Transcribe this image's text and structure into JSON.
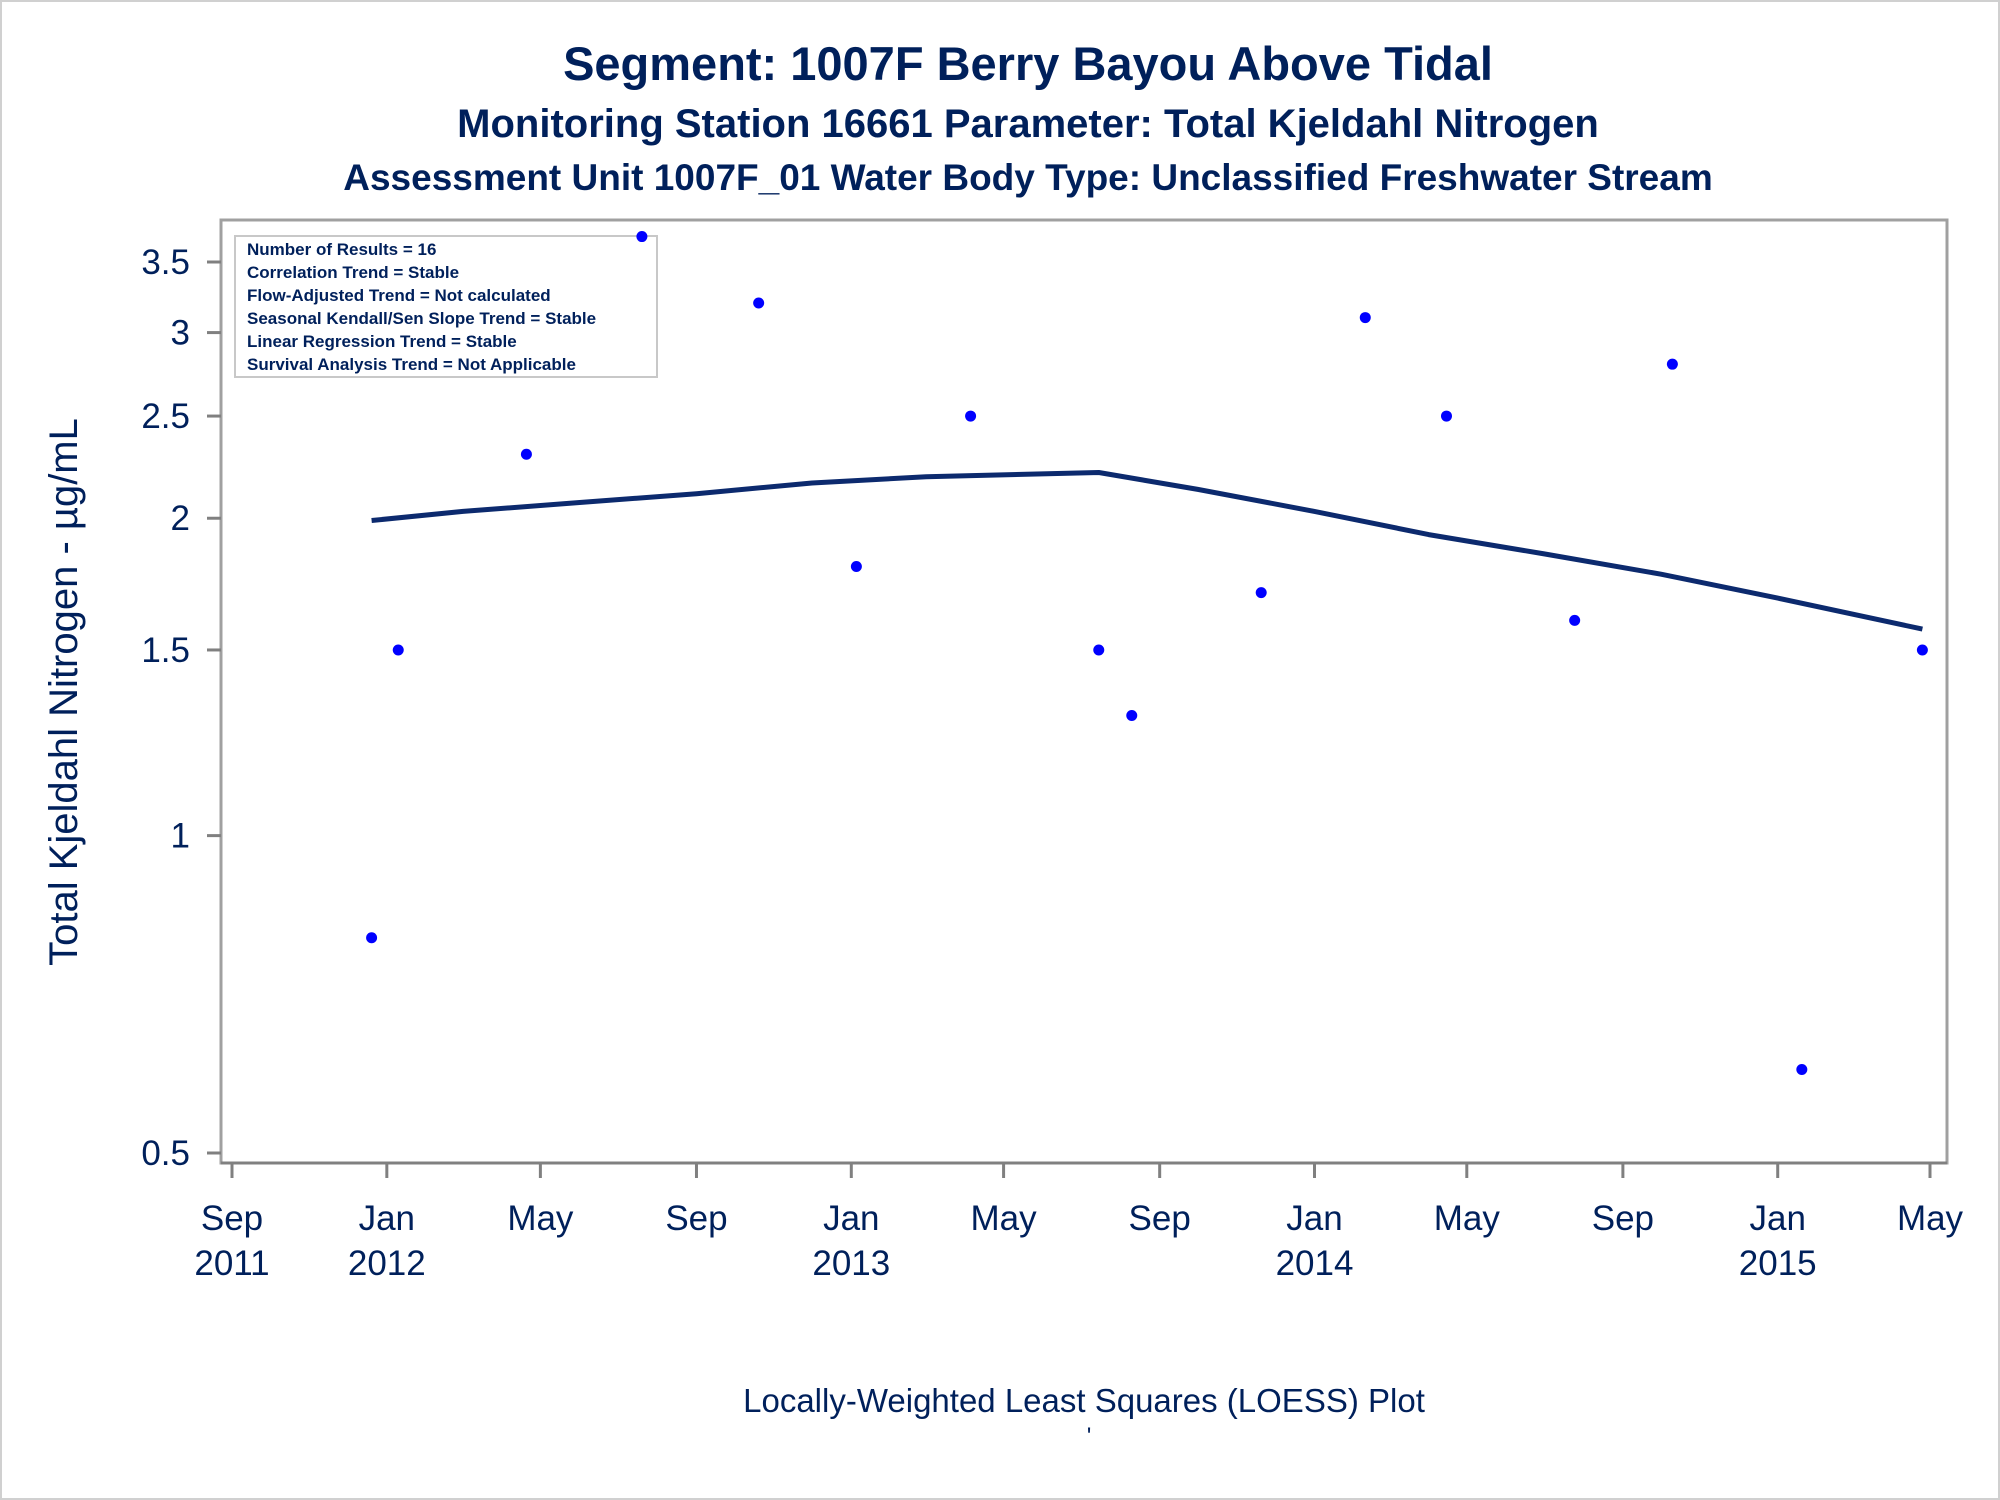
{
  "titles": {
    "line1": "Segment: 1007F  Berry Bayou Above Tidal",
    "line2": "Monitoring Station 16661 Parameter: Total Kjeldahl Nitrogen",
    "line3": "Assessment Unit 1007F_01   Water Body Type: Unclassified Freshwater Stream"
  },
  "footnote": "Locally-Weighted Least Squares (LOESS) Plot",
  "footnote_mark": "'",
  "stats_box": [
    "Number of Results = 16",
    "Correlation Trend = Stable",
    "Flow-Adjusted Trend = Not calculated",
    "Seasonal Kendall/Sen Slope Trend = Stable",
    "Linear Regression Trend = Stable",
    "Survival Analysis Trend = Not Applicable"
  ],
  "colors": {
    "text": "#00205b",
    "points": "#0000ff",
    "loess_line": "#0c2a6e",
    "axis": "#808080"
  },
  "chart_data": {
    "type": "scatter",
    "ylabel": "Total Kjeldahl Nitrogen -  µg/mL",
    "y_scale": "log",
    "ylim": [
      0.5,
      3.7
    ],
    "y_ticks": [
      0.5,
      1,
      1.5,
      2,
      2.5,
      3,
      3.5
    ],
    "xlim": [
      "2011-09-01",
      "2015-05-01"
    ],
    "x_ticks": [
      {
        "date": "2011-09-01",
        "month": "Sep",
        "year": "2011"
      },
      {
        "date": "2012-01-01",
        "month": "Jan",
        "year": "2012"
      },
      {
        "date": "2012-05-01",
        "month": "May",
        "year": ""
      },
      {
        "date": "2012-09-01",
        "month": "Sep",
        "year": ""
      },
      {
        "date": "2013-01-01",
        "month": "Jan",
        "year": "2013"
      },
      {
        "date": "2013-05-01",
        "month": "May",
        "year": ""
      },
      {
        "date": "2013-09-01",
        "month": "Sep",
        "year": ""
      },
      {
        "date": "2014-01-01",
        "month": "Jan",
        "year": "2014"
      },
      {
        "date": "2014-05-01",
        "month": "May",
        "year": ""
      },
      {
        "date": "2014-09-01",
        "month": "Sep",
        "year": ""
      },
      {
        "date": "2015-01-01",
        "month": "Jan",
        "year": "2015"
      },
      {
        "date": "2015-05-01",
        "month": "May",
        "year": ""
      }
    ],
    "grid": false,
    "series": [
      {
        "kind": "points",
        "points": [
          {
            "x": "2011-12-20",
            "y": 0.8
          },
          {
            "x": "2012-01-10",
            "y": 1.5
          },
          {
            "x": "2012-04-20",
            "y": 2.3
          },
          {
            "x": "2012-07-20",
            "y": 3.7
          },
          {
            "x": "2012-10-20",
            "y": 3.2
          },
          {
            "x": "2013-01-05",
            "y": 1.8
          },
          {
            "x": "2013-04-05",
            "y": 2.5
          },
          {
            "x": "2013-07-15",
            "y": 1.5
          },
          {
            "x": "2013-08-10",
            "y": 1.3
          },
          {
            "x": "2013-11-20",
            "y": 1.7
          },
          {
            "x": "2014-02-10",
            "y": 3.1
          },
          {
            "x": "2014-04-15",
            "y": 2.5
          },
          {
            "x": "2014-07-25",
            "y": 1.6
          },
          {
            "x": "2014-10-10",
            "y": 2.8
          },
          {
            "x": "2015-01-20",
            "y": 0.6
          },
          {
            "x": "2015-04-25",
            "y": 1.5
          }
        ]
      },
      {
        "kind": "loess_line",
        "points": [
          {
            "x": "2011-12-20",
            "y": 1.99
          },
          {
            "x": "2012-03-01",
            "y": 2.03
          },
          {
            "x": "2012-06-01",
            "y": 2.07
          },
          {
            "x": "2012-09-01",
            "y": 2.11
          },
          {
            "x": "2012-12-01",
            "y": 2.16
          },
          {
            "x": "2013-03-01",
            "y": 2.19
          },
          {
            "x": "2013-07-15",
            "y": 2.21
          },
          {
            "x": "2013-10-01",
            "y": 2.13
          },
          {
            "x": "2014-01-01",
            "y": 2.03
          },
          {
            "x": "2014-04-01",
            "y": 1.93
          },
          {
            "x": "2014-07-01",
            "y": 1.85
          },
          {
            "x": "2014-10-01",
            "y": 1.77
          },
          {
            "x": "2015-01-01",
            "y": 1.68
          },
          {
            "x": "2015-04-25",
            "y": 1.57
          }
        ]
      }
    ]
  }
}
